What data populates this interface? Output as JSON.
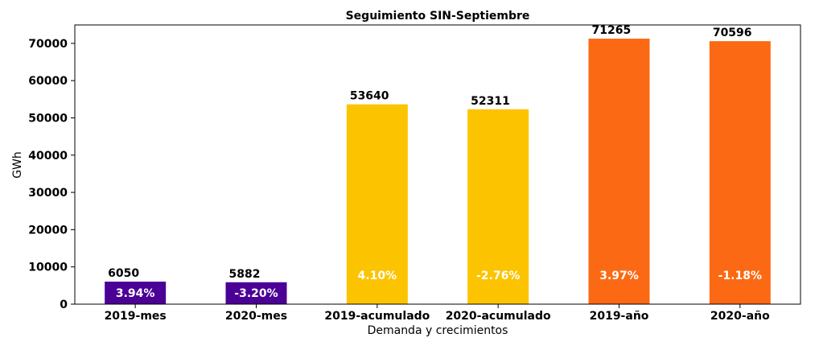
{
  "chart_data": {
    "type": "bar",
    "title": "Seguimiento SIN-Septiembre",
    "xlabel": "Demanda y crecimientos",
    "ylabel": "GWh",
    "ylim": [
      0,
      75000
    ],
    "yticks": [
      0,
      10000,
      20000,
      30000,
      40000,
      50000,
      60000,
      70000
    ],
    "categories": [
      "2019-mes",
      "2020-mes",
      "2019-acumulado",
      "2020-acumulado",
      "2019-año",
      "2020-año"
    ],
    "values": [
      6050,
      5882,
      53640,
      52311,
      71265,
      70596
    ],
    "value_labels": [
      "6050",
      "5882",
      "53640",
      "52311",
      "71265",
      "70596"
    ],
    "growth_labels": [
      "3.94%",
      "-3.20%",
      "4.10%",
      "-2.76%",
      "3.97%",
      "-1.18%"
    ],
    "growth_values": [
      3.94,
      -3.2,
      4.1,
      -2.76,
      3.97,
      -1.18
    ],
    "colors": [
      "#4b0096",
      "#4b0096",
      "#fcc400",
      "#fcc400",
      "#fc6914",
      "#fc6914"
    ],
    "grid": false,
    "legend": "none"
  }
}
